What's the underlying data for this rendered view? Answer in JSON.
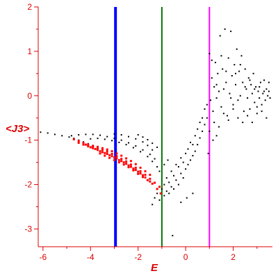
{
  "chart_data": {
    "type": "scatter",
    "xlabel": "E",
    "ylabel": "<J3>",
    "xlim": [
      -6.2,
      3.65
    ],
    "ylim": [
      -3.4,
      2.0
    ],
    "x_ticks": [
      -6,
      -4,
      -2,
      0,
      2
    ],
    "y_ticks": [
      2,
      1,
      0,
      -1,
      -2,
      -3
    ],
    "grid": false,
    "axis_color": "#dd0000",
    "vertical_lines": [
      {
        "x": -2.95,
        "color": "#0000ff"
      },
      {
        "x": -1.0,
        "color": "#007700"
      },
      {
        "x": 1.0,
        "color": "#ff00ff"
      }
    ],
    "series": [
      {
        "color": "#000000",
        "points": [
          [
            -6.1,
            -0.82
          ],
          [
            -5.8,
            -0.84
          ],
          [
            -5.5,
            -0.87
          ],
          [
            -5.2,
            -0.9
          ],
          [
            -4.9,
            -0.93
          ],
          [
            -4.7,
            -0.96
          ],
          [
            -4.5,
            -1.0
          ],
          [
            -4.3,
            -1.04
          ],
          [
            -4.1,
            -1.08
          ],
          [
            -3.9,
            -1.12
          ],
          [
            -3.7,
            -1.16
          ],
          [
            -3.5,
            -1.2
          ],
          [
            -3.3,
            -1.25
          ],
          [
            -4.8,
            -0.9
          ],
          [
            -4.5,
            -0.88
          ],
          [
            -4.2,
            -0.87
          ],
          [
            -3.9,
            -0.87
          ],
          [
            -3.6,
            -0.89
          ],
          [
            -3.3,
            -0.92
          ],
          [
            -3.0,
            -0.96
          ],
          [
            -2.7,
            -1.0
          ],
          [
            -2.4,
            -1.06
          ],
          [
            -2.1,
            -1.13
          ],
          [
            -1.8,
            -1.22
          ],
          [
            -1.5,
            -1.32
          ],
          [
            -1.3,
            -1.42
          ],
          [
            -4.0,
            -0.97
          ],
          [
            -3.7,
            -0.96
          ],
          [
            -3.4,
            -0.98
          ],
          [
            -3.1,
            -1.01
          ],
          [
            -2.8,
            -1.05
          ],
          [
            -2.5,
            -1.1
          ],
          [
            -2.2,
            -1.17
          ],
          [
            -1.9,
            -1.26
          ],
          [
            -1.6,
            -1.37
          ],
          [
            -1.4,
            -1.48
          ],
          [
            -1.2,
            -1.6
          ],
          [
            -3.0,
            -0.86
          ],
          [
            -2.7,
            -0.88
          ],
          [
            -2.4,
            -0.92
          ],
          [
            -2.1,
            -0.97
          ],
          [
            -1.8,
            -1.04
          ],
          [
            -1.6,
            -1.12
          ],
          [
            -1.4,
            -1.22
          ],
          [
            -2.0,
            -0.88
          ],
          [
            -1.8,
            -0.93
          ],
          [
            -1.6,
            -0.99
          ],
          [
            -1.4,
            -1.07
          ],
          [
            -1.2,
            -1.16
          ],
          [
            -1.4,
            -2.45
          ],
          [
            -1.3,
            -2.3
          ],
          [
            -1.2,
            -2.2
          ],
          [
            -1.1,
            -2.35
          ],
          [
            -1.0,
            -2.1
          ],
          [
            -0.9,
            -2.0
          ],
          [
            -0.9,
            -2.25
          ],
          [
            -0.8,
            -1.85
          ],
          [
            -0.8,
            -2.15
          ],
          [
            -0.7,
            -1.95
          ],
          [
            -0.7,
            -2.2
          ],
          [
            -0.6,
            -1.7
          ],
          [
            -0.6,
            -2.05
          ],
          [
            -0.5,
            -1.8
          ],
          [
            -0.5,
            -2.1
          ],
          [
            -0.4,
            -1.55
          ],
          [
            -0.4,
            -1.9
          ],
          [
            -0.3,
            -1.6
          ],
          [
            -0.3,
            -2.0
          ],
          [
            -0.2,
            -1.4
          ],
          [
            -0.2,
            -1.75
          ],
          [
            -0.1,
            -1.5
          ],
          [
            -0.1,
            -1.85
          ],
          [
            0.0,
            -1.3
          ],
          [
            0.0,
            -1.65
          ],
          [
            0.1,
            -1.2
          ],
          [
            0.1,
            -1.55
          ],
          [
            0.2,
            -1.05
          ],
          [
            0.2,
            -1.45
          ],
          [
            0.3,
            -1.1
          ],
          [
            0.3,
            -1.35
          ],
          [
            0.4,
            -0.9
          ],
          [
            0.4,
            -1.25
          ],
          [
            0.5,
            -0.75
          ],
          [
            0.5,
            -1.1
          ],
          [
            0.6,
            -0.6
          ],
          [
            0.6,
            -0.95
          ],
          [
            0.7,
            -0.5
          ],
          [
            0.7,
            -0.8
          ],
          [
            0.8,
            -0.3
          ],
          [
            0.8,
            -0.65
          ],
          [
            0.9,
            -0.2
          ],
          [
            0.9,
            -0.5
          ],
          [
            -0.55,
            -3.15
          ],
          [
            -1.1,
            -1.7
          ],
          [
            -0.9,
            -1.55
          ],
          [
            -0.75,
            -1.45
          ],
          [
            0.05,
            -2.3
          ],
          [
            0.3,
            -2.2
          ],
          [
            -0.2,
            -2.4
          ],
          [
            1.0,
            0.95
          ],
          [
            1.05,
            -0.1
          ],
          [
            1.1,
            0.4
          ],
          [
            1.15,
            -0.35
          ],
          [
            1.2,
            0.2
          ],
          [
            1.25,
            0.75
          ],
          [
            1.3,
            -0.05
          ],
          [
            1.35,
            0.5
          ],
          [
            1.4,
            0.1
          ],
          [
            1.45,
            1.35
          ],
          [
            1.5,
            -0.25
          ],
          [
            1.55,
            0.6
          ],
          [
            1.6,
            0.15
          ],
          [
            1.65,
            1.5
          ],
          [
            1.7,
            0.3
          ],
          [
            1.75,
            -0.45
          ],
          [
            1.8,
            0.85
          ],
          [
            1.85,
            0.05
          ],
          [
            1.9,
            1.45
          ],
          [
            1.95,
            0.45
          ],
          [
            2.0,
            -0.2
          ],
          [
            2.05,
            0.7
          ],
          [
            2.1,
            0.25
          ],
          [
            2.15,
            1.05
          ],
          [
            2.2,
            -0.1
          ],
          [
            2.25,
            0.55
          ],
          [
            2.3,
            0.0
          ],
          [
            2.35,
            0.9
          ],
          [
            2.4,
            0.3
          ],
          [
            2.45,
            -0.35
          ],
          [
            2.5,
            0.6
          ],
          [
            2.55,
            0.15
          ],
          [
            2.6,
            -0.05
          ],
          [
            2.65,
            0.4
          ],
          [
            2.7,
            -0.3
          ],
          [
            2.75,
            0.25
          ],
          [
            2.8,
            0.05
          ],
          [
            2.85,
            0.5
          ],
          [
            2.9,
            -0.15
          ],
          [
            2.95,
            0.2
          ],
          [
            3.0,
            -0.4
          ],
          [
            3.05,
            0.1
          ],
          [
            3.1,
            -0.05
          ],
          [
            3.15,
            0.3
          ],
          [
            3.2,
            -0.2
          ],
          [
            3.25,
            0.05
          ],
          [
            3.3,
            0.35
          ],
          [
            3.35,
            -0.1
          ],
          [
            3.4,
            0.15
          ],
          [
            3.45,
            0.0
          ],
          [
            3.5,
            0.1
          ],
          [
            3.55,
            -0.05
          ],
          [
            1.1,
            0.8
          ],
          [
            1.3,
            0.25
          ],
          [
            1.5,
            0.9
          ],
          [
            1.7,
            0.55
          ],
          [
            1.9,
            -0.05
          ],
          [
            2.1,
            0.5
          ],
          [
            2.3,
            0.7
          ],
          [
            2.5,
            0.2
          ],
          [
            2.7,
            0.35
          ],
          [
            2.9,
            0.15
          ],
          [
            3.1,
            0.2
          ],
          [
            3.3,
            0.1
          ],
          [
            3.5,
            0.3
          ],
          [
            1.2,
            -0.6
          ],
          [
            1.4,
            -0.7
          ],
          [
            1.6,
            -0.4
          ],
          [
            1.8,
            -0.55
          ],
          [
            2.0,
            -0.3
          ],
          [
            2.2,
            -0.5
          ],
          [
            2.4,
            -0.6
          ],
          [
            2.6,
            -0.45
          ],
          [
            2.8,
            -0.6
          ],
          [
            3.0,
            -0.25
          ],
          [
            3.2,
            -0.35
          ],
          [
            3.4,
            -0.5
          ],
          [
            1.0,
            -0.8
          ],
          [
            1.15,
            -1.0
          ],
          [
            1.3,
            -0.9
          ],
          [
            0.95,
            -1.3
          ]
        ]
      },
      {
        "color": "#ff0000",
        "points": [
          [
            -4.7,
            -0.98
          ],
          [
            -4.5,
            -1.02
          ],
          [
            -4.3,
            -1.06
          ],
          [
            -4.1,
            -1.1
          ],
          [
            -3.9,
            -1.14
          ],
          [
            -3.7,
            -1.18
          ],
          [
            -3.5,
            -1.22
          ],
          [
            -3.3,
            -1.26
          ],
          [
            -3.1,
            -1.31
          ],
          [
            -2.9,
            -1.36
          ],
          [
            -2.7,
            -1.42
          ],
          [
            -2.5,
            -1.48
          ],
          [
            -2.3,
            -1.55
          ],
          [
            -2.1,
            -1.62
          ],
          [
            -1.9,
            -1.7
          ],
          [
            -1.7,
            -1.78
          ],
          [
            -1.5,
            -1.87
          ],
          [
            -1.3,
            -1.96
          ],
          [
            -1.1,
            -2.05
          ],
          [
            -4.5,
            -1.06
          ],
          [
            -4.3,
            -1.1
          ],
          [
            -4.1,
            -1.14
          ],
          [
            -3.9,
            -1.18
          ],
          [
            -3.7,
            -1.22
          ],
          [
            -3.5,
            -1.27
          ],
          [
            -3.3,
            -1.31
          ],
          [
            -3.1,
            -1.36
          ],
          [
            -2.9,
            -1.41
          ],
          [
            -2.7,
            -1.47
          ],
          [
            -2.5,
            -1.53
          ],
          [
            -2.3,
            -1.6
          ],
          [
            -2.1,
            -1.67
          ],
          [
            -1.9,
            -1.75
          ],
          [
            -1.7,
            -1.84
          ],
          [
            -1.5,
            -1.93
          ],
          [
            -4.2,
            -1.1
          ],
          [
            -4.0,
            -1.16
          ],
          [
            -3.8,
            -1.2
          ],
          [
            -3.6,
            -1.25
          ],
          [
            -3.4,
            -1.29
          ],
          [
            -3.2,
            -1.34
          ],
          [
            -3.0,
            -1.39
          ],
          [
            -2.8,
            -1.45
          ],
          [
            -2.6,
            -1.5
          ],
          [
            -2.4,
            -1.57
          ],
          [
            -2.2,
            -1.64
          ],
          [
            -2.0,
            -1.71
          ],
          [
            -1.8,
            -1.79
          ],
          [
            -3.9,
            -1.13
          ],
          [
            -3.7,
            -1.15
          ],
          [
            -3.5,
            -1.18
          ],
          [
            -3.3,
            -1.21
          ],
          [
            -3.1,
            -1.25
          ],
          [
            -2.9,
            -1.3
          ],
          [
            -2.7,
            -1.35
          ],
          [
            -2.5,
            -1.41
          ],
          [
            -2.3,
            -1.47
          ],
          [
            -2.1,
            -1.54
          ],
          [
            -1.9,
            -1.62
          ],
          [
            -1.7,
            -1.7
          ],
          [
            -1.5,
            -1.78
          ],
          [
            -3.6,
            -1.3
          ],
          [
            -3.4,
            -1.35
          ],
          [
            -3.2,
            -1.4
          ],
          [
            -3.0,
            -1.45
          ],
          [
            -2.8,
            -1.5
          ],
          [
            -2.6,
            -1.55
          ],
          [
            -2.4,
            -1.61
          ],
          [
            -2.2,
            -1.68
          ],
          [
            -2.0,
            -1.76
          ],
          [
            -1.8,
            -1.83
          ],
          [
            -1.6,
            -1.9
          ],
          [
            -1.4,
            -1.98
          ],
          [
            -1.2,
            -2.1
          ],
          [
            -1.05,
            -2.2
          ]
        ]
      }
    ]
  }
}
